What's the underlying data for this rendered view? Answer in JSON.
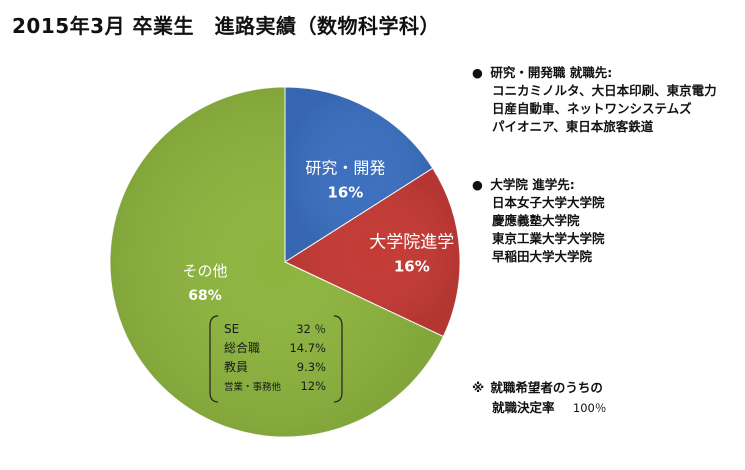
{
  "title": "2015年3月 卒業生　進路実績（数物科学科）",
  "chart_data": {
    "type": "pie",
    "slices": [
      {
        "label": "研究・開発",
        "value": 16,
        "value_label": "16%",
        "color": "#3b6fbf"
      },
      {
        "label": "大学院進学",
        "value": 16,
        "value_label": "16%",
        "color": "#c43a35"
      },
      {
        "label": "その他",
        "value": 68,
        "value_label": "68%",
        "color": "#8db43f"
      }
    ],
    "breakdown": {
      "parent": "その他",
      "items": [
        {
          "label": "SE",
          "value_label": "32 ％"
        },
        {
          "label": "総合職",
          "value_label": "14.7%"
        },
        {
          "label": "教員",
          "value_label": "9.3%"
        },
        {
          "label": "営業・事務他",
          "value_label": "12%"
        }
      ]
    }
  },
  "notes": {
    "employment": {
      "bullet": "●",
      "heading": "研究・開発職 就職先:",
      "lines": [
        "コニカミノルタ、大日本印刷、東京電力",
        "日産自動車、ネットワンシステムズ",
        "パイオニア、東日本旅客鉄道"
      ]
    },
    "graduate": {
      "bullet": "●",
      "heading": "大学院 進学先:",
      "lines": [
        "日本女子大学大学院",
        "慶應義塾大学院",
        "東京工業大学大学院",
        "早稲田大学大学院"
      ]
    }
  },
  "footnote": {
    "mark": "※",
    "line1": "就職希望者のうちの",
    "line2": "就職決定率",
    "rate": "100％"
  }
}
